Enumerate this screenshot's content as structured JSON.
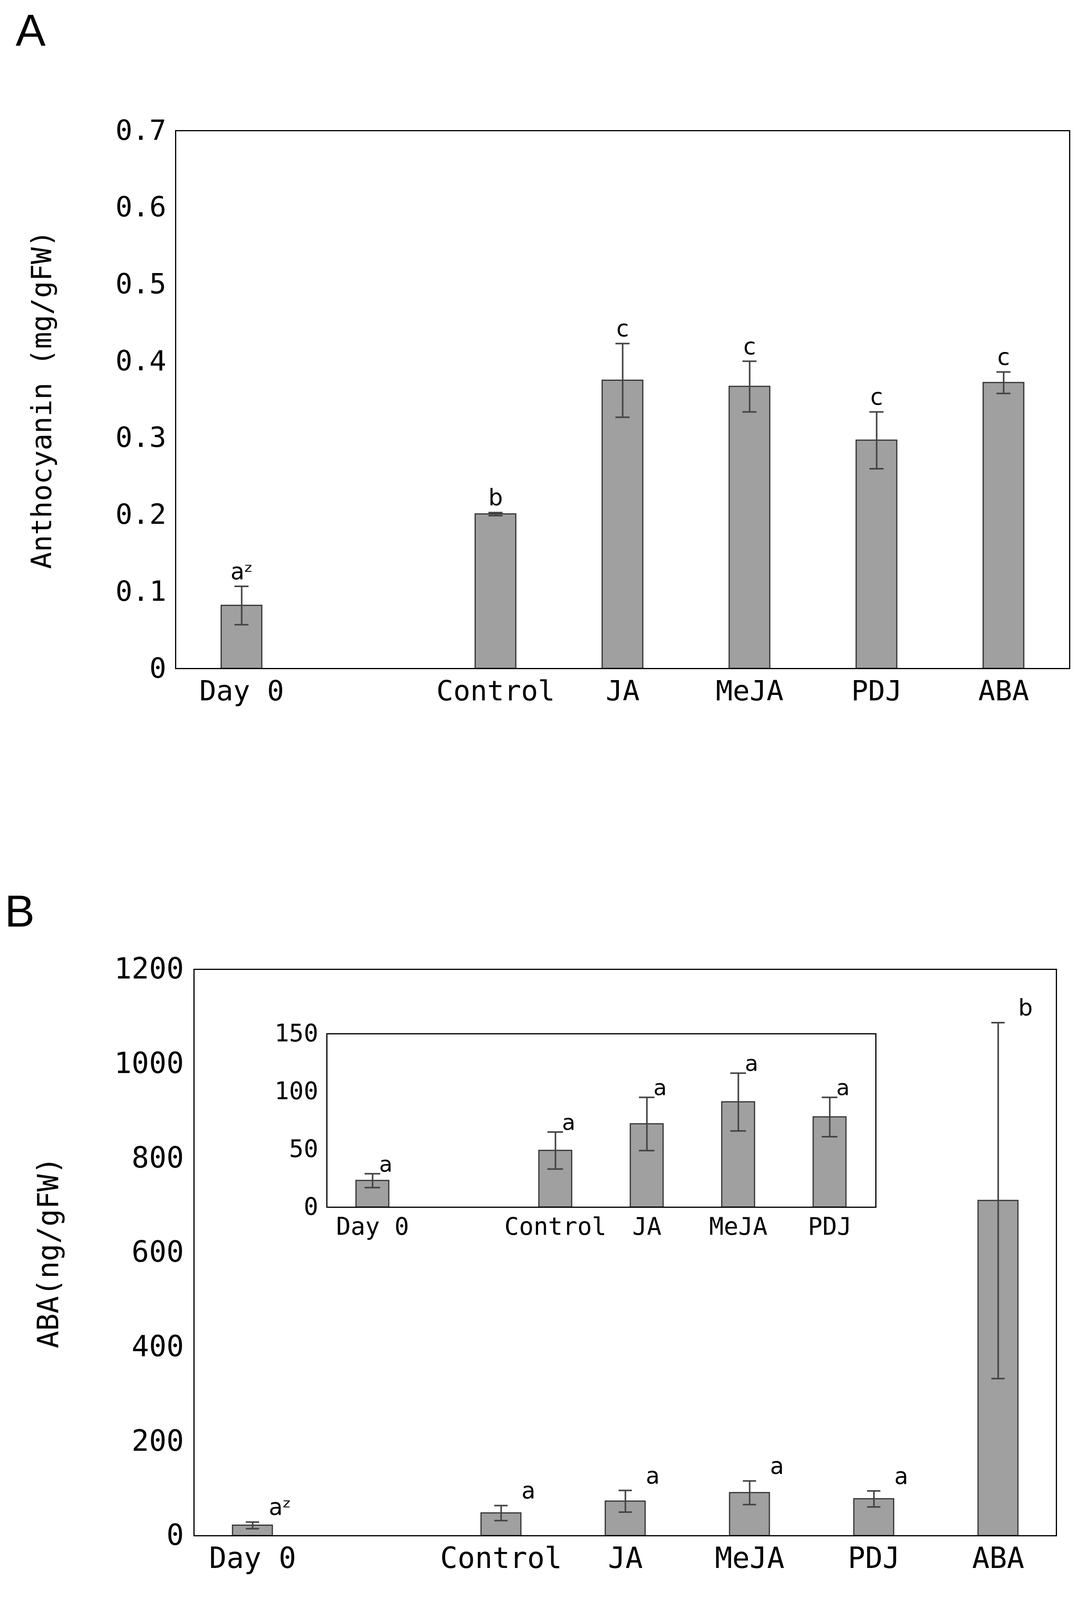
{
  "chart_data": [
    {
      "type": "bar",
      "title": "A",
      "categories": [
        "Day 0",
        null,
        "Control",
        "JA",
        "MeJA",
        "PDJ",
        "ABA"
      ],
      "values": [
        0.082,
        null,
        0.201,
        0.375,
        0.367,
        0.297,
        0.372
      ],
      "errors": [
        0.025,
        null,
        0.002,
        0.048,
        0.033,
        0.037,
        0.014
      ],
      "letters": [
        "aᶻ",
        null,
        "b",
        "c",
        "c",
        "c",
        "c"
      ],
      "y_label": "Anthocyanin (mg/gFW)",
      "ylim": [
        0,
        0.7
      ],
      "yticks": [
        0,
        0.1,
        0.2,
        0.3,
        0.4,
        0.5,
        0.6,
        0.7
      ],
      "color": "#a0a0a0"
    },
    {
      "type": "bar",
      "title": "B",
      "categories": [
        "Day 0",
        null,
        "Control",
        "JA",
        "MeJA",
        "PDJ",
        "ABA"
      ],
      "values": [
        22,
        null,
        48,
        73,
        91,
        78,
        710
      ],
      "errors": [
        7,
        null,
        16,
        23,
        25,
        17,
        377
      ],
      "letters": [
        "aᶻ",
        null,
        "a",
        "a",
        "a",
        "a",
        "b"
      ],
      "y_label": "ABA(ng/gFW)",
      "ylim": [
        0,
        1200
      ],
      "yticks": [
        0,
        200,
        400,
        600,
        800,
        1000,
        1200
      ],
      "color": "#a0a0a0",
      "inset": {
        "type": "bar",
        "categories": [
          "Day 0",
          null,
          "Control",
          "JA",
          "MeJA",
          "PDJ"
        ],
        "values": [
          23,
          null,
          49,
          72,
          91,
          78
        ],
        "errors": [
          6,
          null,
          16,
          23,
          25,
          17
        ],
        "letters": [
          "a",
          null,
          "a",
          "a",
          "a",
          "a"
        ],
        "ylim": [
          0,
          150
        ],
        "yticks": [
          0,
          50,
          100,
          150
        ],
        "color": "#a0a0a0"
      }
    }
  ]
}
